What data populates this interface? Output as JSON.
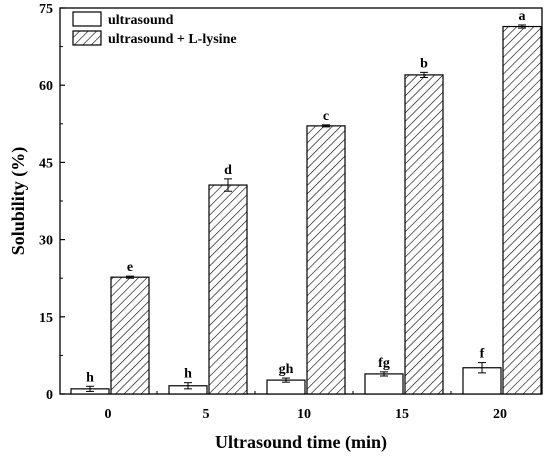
{
  "chart_data": {
    "type": "bar",
    "xlabel": "Ultrasound time (min)",
    "ylabel": "Solubility (%)",
    "ylim": [
      0,
      75
    ],
    "yticks": [
      "0",
      "15",
      "30",
      "45",
      "60",
      "75"
    ],
    "categories": [
      "0",
      "5",
      "10",
      "15",
      "20"
    ],
    "series": [
      {
        "name": "ultrasound",
        "fill": "white",
        "values": [
          1.0,
          1.6,
          2.7,
          3.9,
          5.1
        ],
        "errors": [
          0.5,
          0.6,
          0.4,
          0.4,
          1.0
        ],
        "letters": [
          "h",
          "h",
          "gh",
          "fg",
          "f"
        ]
      },
      {
        "name": "ultrasound + L-lysine",
        "fill": "hatched",
        "values": [
          22.7,
          40.6,
          52.1,
          62.0,
          71.4
        ],
        "errors": [
          0.2,
          1.2,
          0.2,
          0.5,
          0.3
        ],
        "letters": [
          "e",
          "d",
          "c",
          "b",
          "a"
        ]
      }
    ],
    "legend": {
      "position": "top-left"
    },
    "grid": false
  }
}
